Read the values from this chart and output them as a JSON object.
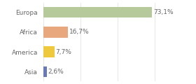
{
  "categories": [
    "Europa",
    "Africa",
    "America",
    "Asia"
  ],
  "values": [
    73.1,
    16.7,
    7.7,
    2.6
  ],
  "labels": [
    "73,1%",
    "16,7%",
    "7,7%",
    "2,6%"
  ],
  "bar_colors": [
    "#b5c99a",
    "#e8a77c",
    "#efc93d",
    "#6979b8"
  ],
  "background_color": "#ffffff",
  "grid_color": "#dddddd",
  "text_color": "#666666",
  "xlim": [
    0,
    100
  ],
  "xticks": [
    0,
    25,
    50,
    75,
    100
  ],
  "label_fontsize": 6.5,
  "category_fontsize": 6.5,
  "bar_height": 0.55
}
